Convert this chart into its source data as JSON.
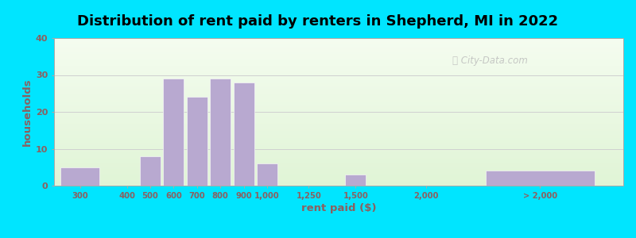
{
  "title": "Distribution of rent paid by renters in Shepherd, MI in 2022",
  "xlabel": "rent paid ($)",
  "ylabel": "households",
  "bar_color": "#b8a9d0",
  "background_outer": "#00e5ff",
  "ylim": [
    0,
    40
  ],
  "yticks": [
    0,
    10,
    20,
    30,
    40
  ],
  "grid_color": "#d0d0d0",
  "title_fontsize": 13,
  "tick_label_color": "#8b6060",
  "bar_values": [
    5,
    0,
    8,
    29,
    24,
    29,
    28,
    6,
    0,
    3,
    0,
    4
  ],
  "bar_pos": [
    0.45,
    1.35,
    1.8,
    2.25,
    2.7,
    3.15,
    3.6,
    4.05,
    4.85,
    5.75,
    7.1,
    9.3
  ],
  "bar_widths": [
    0.75,
    0.4,
    0.4,
    0.4,
    0.4,
    0.4,
    0.4,
    0.4,
    0.4,
    0.4,
    0.4,
    2.1
  ],
  "tick_pos": [
    0.45,
    1.35,
    1.8,
    2.25,
    2.7,
    3.15,
    3.6,
    4.05,
    4.85,
    5.75,
    7.1,
    9.3
  ],
  "tick_labels": [
    "300",
    "400",
    "500",
    "600",
    "700",
    "800",
    "900",
    "1,000",
    "1,250",
    "1,500",
    "2,000",
    "> 2,000"
  ],
  "xlim": [
    -0.05,
    10.9
  ],
  "watermark": "City-Data.com",
  "bg_gradient_top": "#f5faf0",
  "bg_gradient_mid": "#e8f5e0",
  "bg_gradient_bot": "#ddf0d8"
}
